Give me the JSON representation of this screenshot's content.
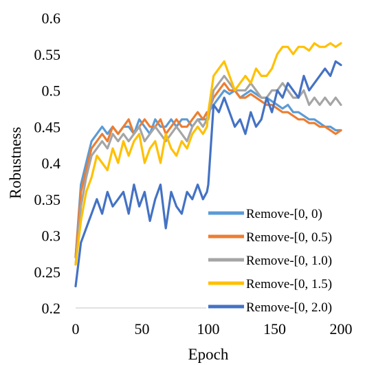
{
  "chart_data": {
    "type": "line",
    "title": "",
    "xlabel": "Epoch",
    "ylabel": "Robustness",
    "xlim": [
      0,
      200
    ],
    "ylim": [
      0.2,
      0.6
    ],
    "x_ticks": [
      "0",
      "50",
      "100",
      "150",
      "200"
    ],
    "y_ticks": [
      "0.2",
      "0.25",
      "0.3",
      "0.35",
      "0.4",
      "0.45",
      "0.5",
      "0.55",
      "0.6"
    ],
    "grid": false,
    "legend_position": "bottom-right",
    "x": [
      0,
      4,
      8,
      12,
      16,
      20,
      24,
      28,
      32,
      36,
      40,
      44,
      48,
      52,
      56,
      60,
      64,
      68,
      72,
      76,
      80,
      84,
      88,
      92,
      96,
      99,
      100,
      104,
      108,
      112,
      116,
      120,
      124,
      128,
      132,
      136,
      140,
      144,
      148,
      152,
      156,
      160,
      164,
      168,
      172,
      176,
      180,
      184,
      188,
      192,
      196,
      200
    ],
    "series": [
      {
        "name": "Remove-[0, 0)",
        "color": "#5B9BD5",
        "values": [
          0.27,
          0.37,
          0.4,
          0.43,
          0.44,
          0.45,
          0.44,
          0.45,
          0.44,
          0.45,
          0.45,
          0.44,
          0.46,
          0.45,
          0.44,
          0.46,
          0.45,
          0.45,
          0.46,
          0.45,
          0.46,
          0.46,
          0.45,
          0.46,
          0.46,
          0.46,
          0.47,
          0.48,
          0.49,
          0.5,
          0.495,
          0.5,
          0.49,
          0.495,
          0.5,
          0.495,
          0.49,
          0.49,
          0.485,
          0.48,
          0.475,
          0.48,
          0.47,
          0.47,
          0.465,
          0.46,
          0.46,
          0.455,
          0.45,
          0.45,
          0.445,
          0.445
        ]
      },
      {
        "name": "Remove-[0, 0.5)",
        "color": "#ED7D31",
        "values": [
          0.27,
          0.36,
          0.39,
          0.42,
          0.43,
          0.44,
          0.43,
          0.45,
          0.44,
          0.45,
          0.46,
          0.44,
          0.45,
          0.46,
          0.45,
          0.45,
          0.46,
          0.44,
          0.45,
          0.46,
          0.45,
          0.45,
          0.46,
          0.47,
          0.46,
          0.47,
          0.47,
          0.49,
          0.5,
          0.51,
          0.5,
          0.5,
          0.49,
          0.49,
          0.495,
          0.49,
          0.485,
          0.48,
          0.48,
          0.475,
          0.47,
          0.47,
          0.465,
          0.46,
          0.46,
          0.455,
          0.455,
          0.45,
          0.45,
          0.445,
          0.44,
          0.445
        ]
      },
      {
        "name": "Remove-[0, 1.0)",
        "color": "#A5A5A5",
        "values": [
          0.26,
          0.34,
          0.38,
          0.41,
          0.42,
          0.43,
          0.42,
          0.44,
          0.43,
          0.44,
          0.43,
          0.44,
          0.45,
          0.43,
          0.44,
          0.45,
          0.44,
          0.43,
          0.44,
          0.45,
          0.44,
          0.43,
          0.45,
          0.46,
          0.45,
          0.46,
          0.46,
          0.5,
          0.51,
          0.52,
          0.51,
          0.5,
          0.5,
          0.5,
          0.51,
          0.5,
          0.49,
          0.49,
          0.5,
          0.5,
          0.51,
          0.5,
          0.49,
          0.49,
          0.5,
          0.48,
          0.49,
          0.48,
          0.49,
          0.48,
          0.49,
          0.48
        ]
      },
      {
        "name": "Remove-[0, 1.5)",
        "color": "#FFC000",
        "values": [
          0.26,
          0.32,
          0.36,
          0.38,
          0.41,
          0.4,
          0.39,
          0.42,
          0.4,
          0.43,
          0.41,
          0.43,
          0.44,
          0.4,
          0.42,
          0.43,
          0.4,
          0.44,
          0.42,
          0.41,
          0.43,
          0.42,
          0.44,
          0.45,
          0.44,
          0.45,
          0.47,
          0.52,
          0.53,
          0.54,
          0.52,
          0.5,
          0.51,
          0.52,
          0.51,
          0.53,
          0.52,
          0.52,
          0.53,
          0.55,
          0.56,
          0.56,
          0.55,
          0.56,
          0.56,
          0.555,
          0.565,
          0.56,
          0.56,
          0.565,
          0.56,
          0.565
        ]
      },
      {
        "name": "Remove-[0, 2.0)",
        "color": "#4472C4",
        "values": [
          0.23,
          0.29,
          0.31,
          0.33,
          0.35,
          0.33,
          0.36,
          0.34,
          0.35,
          0.36,
          0.33,
          0.37,
          0.34,
          0.36,
          0.32,
          0.35,
          0.37,
          0.31,
          0.36,
          0.34,
          0.33,
          0.36,
          0.35,
          0.37,
          0.35,
          0.36,
          0.37,
          0.48,
          0.47,
          0.49,
          0.47,
          0.45,
          0.46,
          0.44,
          0.47,
          0.45,
          0.46,
          0.49,
          0.47,
          0.5,
          0.49,
          0.51,
          0.5,
          0.49,
          0.52,
          0.5,
          0.51,
          0.52,
          0.53,
          0.52,
          0.54,
          0.535
        ]
      }
    ]
  }
}
